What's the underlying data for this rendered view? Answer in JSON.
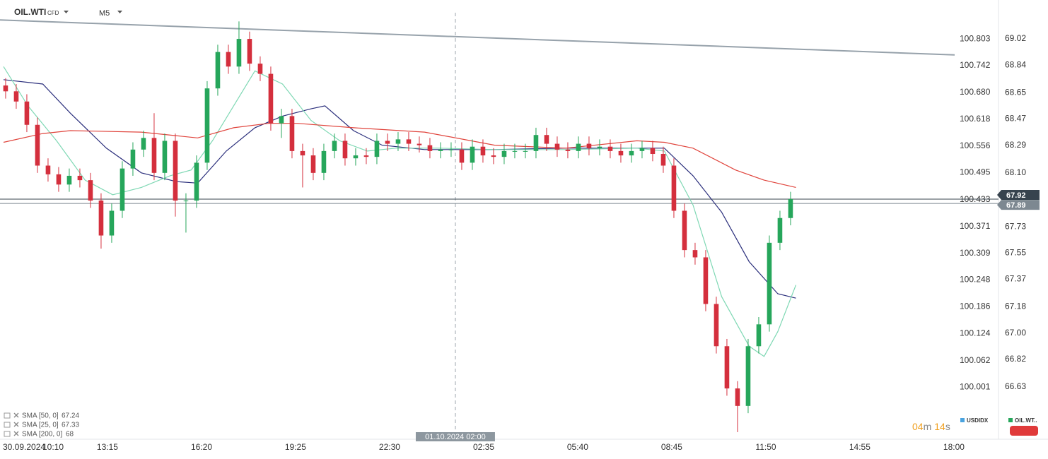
{
  "chart_data": {
    "type": "candlestick",
    "symbol": "OIL.WTI",
    "instrument_class": "CFD",
    "timeframe": "M5",
    "open": [
      68.7,
      68.66,
      68.59,
      68.43,
      68.15,
      68.09,
      68.02,
      68.08,
      68.05,
      67.91,
      67.67,
      67.84,
      68.13,
      68.26,
      68.34,
      68.1,
      68.32,
      67.91,
      67.91,
      68.17,
      68.68,
      68.93,
      68.83,
      69.02,
      68.85,
      68.78,
      68.44,
      68.49,
      68.25,
      68.22,
      68.1,
      68.25,
      68.32,
      68.2,
      68.22,
      68.21,
      68.32,
      68.3,
      68.33,
      68.3,
      68.29,
      68.25,
      68.26,
      68.26,
      68.17,
      68.28,
      68.22,
      68.21,
      68.25,
      68.25,
      68.25,
      68.36,
      68.3,
      68.26,
      68.25,
      68.3,
      68.27,
      68.28,
      68.25,
      68.22,
      68.25,
      68.27,
      68.23,
      68.15,
      67.84,
      67.57,
      67.52,
      67.2,
      66.91,
      66.62,
      66.5,
      66.91,
      67.06,
      67.62,
      67.79
    ],
    "high": [
      68.75,
      68.71,
      68.64,
      68.48,
      68.2,
      68.14,
      68.13,
      68.13,
      68.1,
      67.96,
      67.89,
      68.18,
      68.31,
      68.39,
      68.51,
      68.37,
      68.37,
      67.96,
      68.22,
      68.73,
      68.98,
      68.98,
      69.14,
      69.07,
      68.9,
      68.83,
      68.54,
      68.54,
      68.3,
      68.27,
      68.3,
      68.37,
      68.37,
      68.27,
      68.27,
      68.37,
      68.37,
      68.38,
      68.38,
      68.35,
      68.34,
      68.31,
      68.31,
      68.31,
      68.33,
      68.33,
      68.27,
      68.3,
      68.3,
      68.3,
      68.41,
      68.41,
      68.35,
      68.31,
      68.35,
      68.35,
      68.33,
      68.33,
      68.3,
      68.3,
      68.32,
      68.32,
      68.28,
      68.2,
      67.89,
      67.62,
      67.57,
      67.25,
      66.96,
      66.67,
      66.96,
      67.11,
      67.67,
      67.84,
      67.97
    ],
    "low": [
      68.61,
      68.54,
      68.38,
      68.1,
      68.04,
      67.97,
      67.97,
      68.0,
      67.86,
      67.58,
      67.62,
      67.79,
      68.08,
      68.21,
      68.05,
      68.05,
      67.8,
      67.69,
      67.86,
      68.12,
      68.63,
      68.78,
      68.78,
      68.8,
      68.73,
      68.39,
      68.34,
      68.2,
      68.0,
      68.05,
      68.05,
      68.2,
      68.15,
      68.15,
      68.16,
      68.16,
      68.25,
      68.25,
      68.25,
      68.24,
      68.2,
      68.2,
      68.21,
      68.12,
      68.12,
      68.17,
      68.16,
      68.16,
      68.2,
      68.2,
      68.2,
      68.25,
      68.21,
      68.2,
      68.2,
      68.22,
      68.22,
      68.2,
      68.17,
      68.17,
      68.2,
      68.18,
      68.1,
      67.79,
      67.52,
      67.47,
      67.15,
      66.86,
      66.57,
      66.32,
      66.45,
      66.86,
      67.01,
      67.57,
      67.74
    ],
    "close": [
      68.66,
      68.59,
      68.43,
      68.15,
      68.09,
      68.02,
      68.08,
      68.05,
      67.91,
      67.67,
      67.84,
      68.13,
      68.26,
      68.34,
      68.1,
      68.32,
      67.91,
      67.91,
      68.17,
      68.68,
      68.93,
      68.83,
      69.02,
      68.85,
      68.78,
      68.44,
      68.49,
      68.25,
      68.22,
      68.1,
      68.25,
      68.32,
      68.2,
      68.22,
      68.21,
      68.32,
      68.3,
      68.33,
      68.3,
      68.29,
      68.25,
      68.26,
      68.26,
      68.17,
      68.28,
      68.22,
      68.21,
      68.25,
      68.25,
      68.25,
      68.36,
      68.3,
      68.26,
      68.25,
      68.3,
      68.27,
      68.28,
      68.25,
      68.22,
      68.25,
      68.27,
      68.23,
      68.15,
      67.84,
      67.57,
      67.52,
      67.2,
      66.91,
      66.62,
      66.5,
      66.91,
      67.06,
      67.62,
      67.79,
      67.92
    ],
    "colors": {
      "up": "#26a65b",
      "down": "#d42f3d"
    },
    "xlim": [
      -0.53,
      89.47
    ],
    "date_label": "30.09.2024",
    "xticks": [
      {
        "value": 4.47,
        "label": "10:10"
      },
      {
        "value": 9.6,
        "label": "13:15"
      },
      {
        "value": 18.47,
        "label": "16:20"
      },
      {
        "value": 27.33,
        "label": "19:25"
      },
      {
        "value": 36.2,
        "label": "22:30"
      },
      {
        "value": 45.07,
        "label": "02:35"
      },
      {
        "value": 53.93,
        "label": "05:40"
      },
      {
        "value": 62.8,
        "label": "08:45"
      },
      {
        "value": 71.67,
        "label": "11:50"
      },
      {
        "value": 80.53,
        "label": "14:55"
      },
      {
        "value": 89.4,
        "label": "18:00"
      }
    ],
    "session_marker": {
      "value": 42.4,
      "label": "01.10.2024 02:00"
    },
    "ylim": [
      66.281,
      69.287
    ],
    "yticks": [
      69.02,
      68.84,
      68.65,
      68.47,
      68.29,
      {
        "value": 68.1,
        "label": "68.10"
      },
      67.73,
      67.55,
      67.37,
      67.18,
      {
        "value": 67,
        "label": "67.00"
      },
      66.82,
      66.63
    ],
    "y2_name": "USDIDX",
    "y2lim": [
      99.884,
      100.893
    ],
    "y2ticks": [
      100.803,
      100.742,
      {
        "value": 100.68,
        "label": "100.680"
      },
      100.618,
      100.556,
      100.495,
      100.433,
      100.371,
      100.309,
      100.248,
      100.186,
      100.124,
      100.062,
      100.001
    ],
    "overlays": [
      {
        "name": "SMA [50, 0]",
        "last": 67.24,
        "color": "#2b2f7c",
        "x": [
          -0.2,
          3.5,
          6.1,
          9.5,
          12.8,
          16.1,
          18.1,
          20.8,
          23.5,
          26.1,
          28.8,
          30.1,
          32.8,
          35.5,
          39.5,
          46.1,
          52.8,
          59.5,
          62.1,
          64.8,
          67.5,
          70.1,
          72.8,
          74.5
        ],
        "values": [
          68.74,
          68.71,
          68.51,
          68.27,
          68.1,
          68.04,
          68.03,
          68.25,
          68.41,
          68.49,
          68.54,
          68.56,
          68.39,
          68.29,
          68.26,
          68.26,
          68.27,
          68.27,
          68.27,
          68.08,
          67.83,
          67.49,
          67.27,
          67.24
        ]
      },
      {
        "name": "SMA [25, 0]",
        "last": 67.33,
        "color": "#7fd8b4",
        "x": [
          -0.2,
          2.1,
          4.8,
          7.5,
          10.1,
          12.8,
          15.5,
          17.5,
          19.5,
          21.5,
          23.5,
          26.1,
          28.8,
          31.5,
          34.1,
          36.8,
          40.8,
          46.1,
          52.8,
          59.5,
          62.1,
          64.8,
          67.5,
          70.1,
          71.5,
          72.8,
          74.5
        ],
        "values": [
          68.83,
          68.56,
          68.32,
          68.05,
          67.95,
          68.0,
          68.08,
          68.12,
          68.32,
          68.56,
          68.8,
          68.71,
          68.46,
          68.32,
          68.25,
          68.27,
          68.27,
          68.26,
          68.26,
          68.27,
          68.25,
          67.88,
          67.25,
          66.91,
          66.84,
          67.01,
          67.33
        ]
      },
      {
        "name": "SMA [200, 0]",
        "last": 68.0,
        "color": "#e0443c",
        "x": [
          -0.2,
          3.5,
          6.1,
          12.8,
          18.1,
          21.5,
          24.8,
          27.5,
          32.8,
          39.5,
          46.1,
          52.8,
          59.5,
          62.1,
          64.8,
          68.8,
          71.5,
          74.5
        ],
        "values": [
          68.31,
          68.37,
          68.39,
          68.38,
          68.34,
          68.41,
          68.44,
          68.44,
          68.41,
          68.38,
          68.29,
          68.27,
          68.32,
          68.31,
          68.27,
          68.12,
          68.05,
          68.0
        ]
      }
    ],
    "trendline": {
      "color": "#97a2ab",
      "x": [
        -0.53,
        89.47
      ],
      "values": [
        69.15,
        68.91
      ]
    },
    "price_lines": [
      {
        "value": 67.92,
        "color": "#37434e"
      },
      {
        "value": 67.89,
        "color": "#7d8891"
      }
    ],
    "countdown": {
      "minutes": "04",
      "minute_unit": "m",
      "seconds": "14",
      "second_unit": "s"
    },
    "legend": [
      {
        "name": "USDIDX",
        "color": "#4aa3df"
      },
      {
        "name": "OIL.WT..",
        "color": "#26a65b"
      }
    ]
  }
}
